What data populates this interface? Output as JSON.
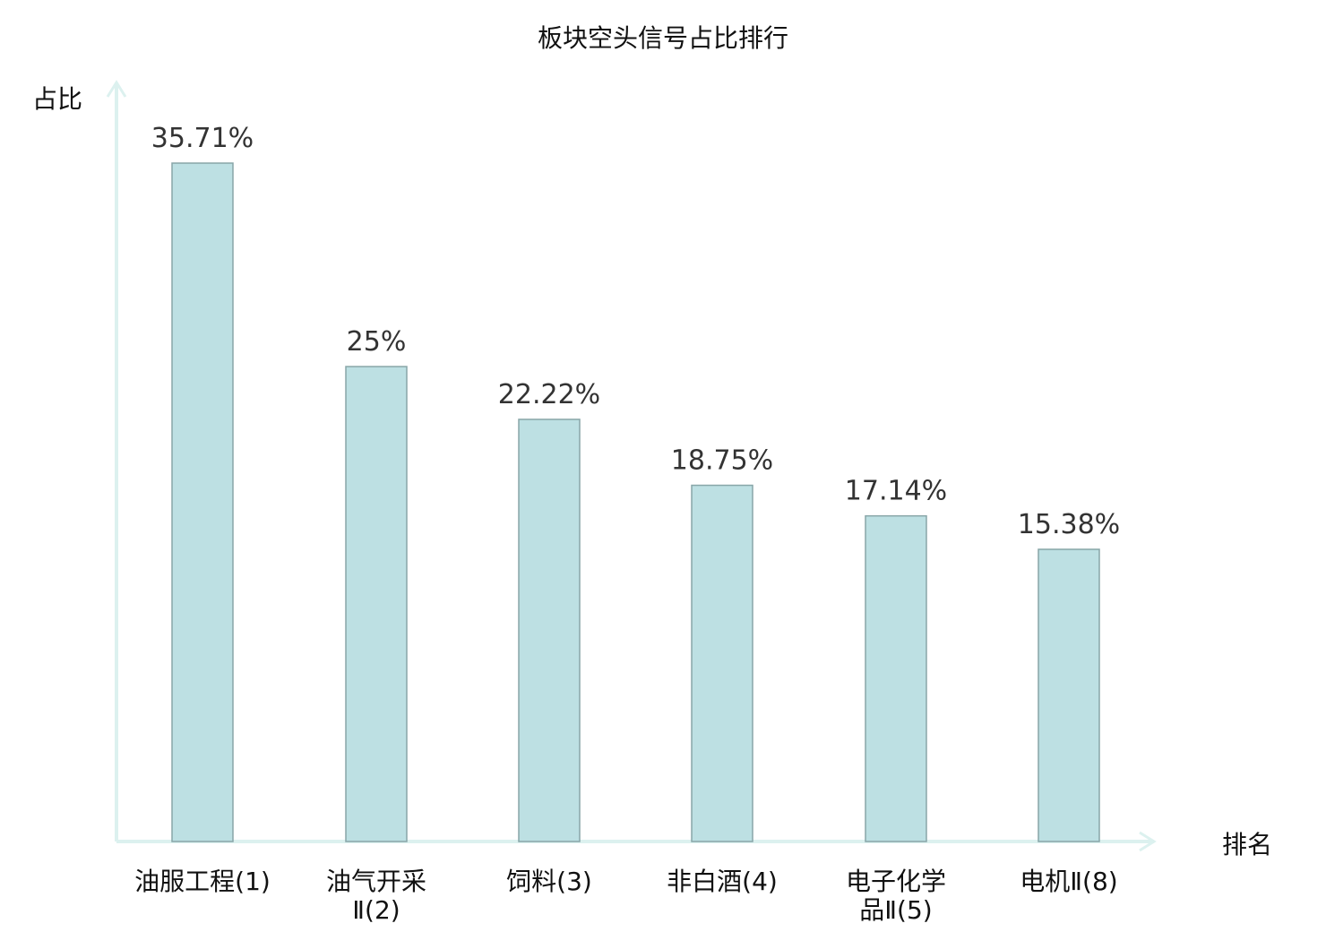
{
  "chart_data": {
    "type": "bar",
    "title": "板块空头信号占比排行",
    "xlabel": "排名",
    "ylabel": "占比",
    "ylim": [
      0,
      40
    ],
    "grid": false,
    "categories": [
      [
        "油服工程(1)"
      ],
      [
        "油气开采",
        "Ⅱ(2)"
      ],
      [
        "饲料(3)"
      ],
      [
        "非白酒(4)"
      ],
      [
        "电子化学",
        "品Ⅱ(5)"
      ],
      [
        "电机Ⅱ(8)"
      ]
    ],
    "values": [
      35.71,
      25,
      22.22,
      18.75,
      17.14,
      15.38
    ],
    "value_labels": [
      "35.71%",
      "25%",
      "22.22%",
      "18.75%",
      "17.14%",
      "15.38%"
    ],
    "highlight_index": 5,
    "colors": {
      "bar_fill": "#bde0e3",
      "bar_stroke": "#88a6a8",
      "axis": "#dcf1ef",
      "highlight_text": "#e8161b",
      "text": "#111111"
    }
  }
}
